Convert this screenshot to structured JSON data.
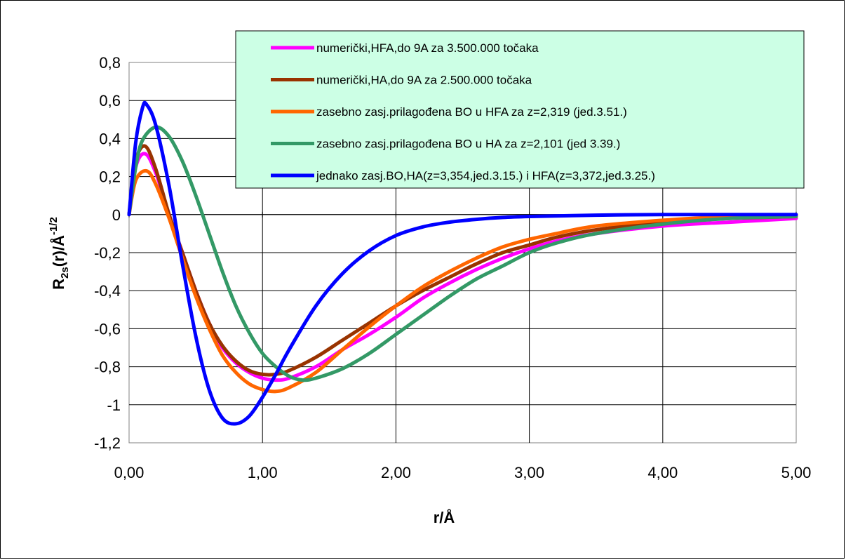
{
  "chart_data": {
    "type": "line",
    "xlabel": "r/Å",
    "ylabel": {
      "main": "R",
      "sub": "2s",
      "mid": "(r)/Å",
      "sup": "-1/2"
    },
    "xlim": [
      0,
      5
    ],
    "ylim": [
      -1.2,
      0.8
    ],
    "x_ticks": [
      {
        "value": 0,
        "label": "0,00"
      },
      {
        "value": 1,
        "label": "1,00"
      },
      {
        "value": 2,
        "label": "2,00"
      },
      {
        "value": 3,
        "label": "3,00"
      },
      {
        "value": 4,
        "label": "4,00"
      },
      {
        "value": 5,
        "label": "5,00"
      }
    ],
    "y_ticks": [
      {
        "value": 0.8,
        "label": "0,8"
      },
      {
        "value": 0.6,
        "label": "0,6"
      },
      {
        "value": 0.4,
        "label": "0,4"
      },
      {
        "value": 0.2,
        "label": "0,2"
      },
      {
        "value": 0,
        "label": "0"
      },
      {
        "value": -0.2,
        "label": "-0,2"
      },
      {
        "value": -0.4,
        "label": "-0,4"
      },
      {
        "value": -0.6,
        "label": "-0,6"
      },
      {
        "value": -0.8,
        "label": "-0,8"
      },
      {
        "value": -1,
        "label": "-1"
      },
      {
        "value": -1.2,
        "label": "-1,2"
      }
    ],
    "grid": true,
    "legend_position": "top-right",
    "legend_background": "#ccffe5",
    "series": [
      {
        "name": "numerički,HFA,do 9A za 3.500.000 točaka",
        "color": "#ff00ff",
        "points": [
          [
            0,
            0
          ],
          [
            0.05,
            0.25
          ],
          [
            0.12,
            0.32
          ],
          [
            0.2,
            0.22
          ],
          [
            0.3,
            0.0
          ],
          [
            0.4,
            -0.2
          ],
          [
            0.5,
            -0.4
          ],
          [
            0.6,
            -0.57
          ],
          [
            0.7,
            -0.7
          ],
          [
            0.8,
            -0.78
          ],
          [
            0.9,
            -0.83
          ],
          [
            1.0,
            -0.86
          ],
          [
            1.1,
            -0.87
          ],
          [
            1.2,
            -0.86
          ],
          [
            1.4,
            -0.8
          ],
          [
            1.6,
            -0.71
          ],
          [
            1.8,
            -0.63
          ],
          [
            2.0,
            -0.54
          ],
          [
            2.2,
            -0.44
          ],
          [
            2.4,
            -0.36
          ],
          [
            2.6,
            -0.29
          ],
          [
            2.8,
            -0.23
          ],
          [
            3.0,
            -0.18
          ],
          [
            3.2,
            -0.14
          ],
          [
            3.5,
            -0.1
          ],
          [
            4.0,
            -0.06
          ],
          [
            4.5,
            -0.04
          ],
          [
            5.0,
            -0.02
          ]
        ]
      },
      {
        "name": "numerički,HA,do 9A za 2.500.000 točaka",
        "color": "#993300",
        "points": [
          [
            0,
            0
          ],
          [
            0.05,
            0.28
          ],
          [
            0.12,
            0.36
          ],
          [
            0.2,
            0.24
          ],
          [
            0.3,
            0.0
          ],
          [
            0.4,
            -0.2
          ],
          [
            0.5,
            -0.4
          ],
          [
            0.6,
            -0.57
          ],
          [
            0.7,
            -0.69
          ],
          [
            0.8,
            -0.77
          ],
          [
            0.9,
            -0.82
          ],
          [
            1.0,
            -0.84
          ],
          [
            1.1,
            -0.84
          ],
          [
            1.2,
            -0.82
          ],
          [
            1.4,
            -0.75
          ],
          [
            1.6,
            -0.66
          ],
          [
            1.8,
            -0.57
          ],
          [
            2.0,
            -0.48
          ],
          [
            2.2,
            -0.4
          ],
          [
            2.4,
            -0.33
          ],
          [
            2.6,
            -0.26
          ],
          [
            2.8,
            -0.2
          ],
          [
            3.0,
            -0.16
          ],
          [
            3.2,
            -0.12
          ],
          [
            3.5,
            -0.08
          ],
          [
            4.0,
            -0.04
          ],
          [
            4.5,
            -0.02
          ],
          [
            5.0,
            -0.01
          ]
        ]
      },
      {
        "name": "zasebno zasj.prilagođena BO u HFA za z=2,319 (jed.3.51.)",
        "color": "#ff6600",
        "points": [
          [
            0,
            0
          ],
          [
            0.05,
            0.18
          ],
          [
            0.13,
            0.23
          ],
          [
            0.2,
            0.16
          ],
          [
            0.3,
            -0.02
          ],
          [
            0.4,
            -0.23
          ],
          [
            0.5,
            -0.43
          ],
          [
            0.6,
            -0.6
          ],
          [
            0.7,
            -0.74
          ],
          [
            0.8,
            -0.83
          ],
          [
            0.9,
            -0.89
          ],
          [
            1.0,
            -0.92
          ],
          [
            1.1,
            -0.93
          ],
          [
            1.2,
            -0.91
          ],
          [
            1.4,
            -0.83
          ],
          [
            1.6,
            -0.71
          ],
          [
            1.8,
            -0.59
          ],
          [
            2.0,
            -0.48
          ],
          [
            2.2,
            -0.38
          ],
          [
            2.4,
            -0.3
          ],
          [
            2.6,
            -0.23
          ],
          [
            2.8,
            -0.17
          ],
          [
            3.0,
            -0.13
          ],
          [
            3.2,
            -0.1
          ],
          [
            3.5,
            -0.06
          ],
          [
            4.0,
            -0.03
          ],
          [
            4.5,
            -0.01
          ],
          [
            5.0,
            -0.005
          ]
        ]
      },
      {
        "name": "zasebno zasj.prilagođena BO u HA za z=2,101 (jed 3.39.)",
        "color": "#339966",
        "points": [
          [
            0,
            0
          ],
          [
            0.05,
            0.25
          ],
          [
            0.1,
            0.39
          ],
          [
            0.2,
            0.46
          ],
          [
            0.3,
            0.41
          ],
          [
            0.4,
            0.28
          ],
          [
            0.5,
            0.1
          ],
          [
            0.6,
            -0.1
          ],
          [
            0.7,
            -0.3
          ],
          [
            0.8,
            -0.48
          ],
          [
            0.9,
            -0.62
          ],
          [
            1.0,
            -0.73
          ],
          [
            1.1,
            -0.8
          ],
          [
            1.2,
            -0.85
          ],
          [
            1.3,
            -0.87
          ],
          [
            1.4,
            -0.86
          ],
          [
            1.6,
            -0.81
          ],
          [
            1.8,
            -0.73
          ],
          [
            2.0,
            -0.63
          ],
          [
            2.2,
            -0.53
          ],
          [
            2.4,
            -0.43
          ],
          [
            2.6,
            -0.34
          ],
          [
            2.8,
            -0.27
          ],
          [
            3.0,
            -0.2
          ],
          [
            3.2,
            -0.15
          ],
          [
            3.5,
            -0.1
          ],
          [
            4.0,
            -0.05
          ],
          [
            4.5,
            -0.02
          ],
          [
            5.0,
            -0.01
          ]
        ]
      },
      {
        "name": "jednako zasj.BO,HA(z=3,354,jed.3.15.) i HFA(z=3,372,jed.3.25.)",
        "color": "#0000ff",
        "points": [
          [
            0,
            0
          ],
          [
            0.05,
            0.38
          ],
          [
            0.1,
            0.56
          ],
          [
            0.13,
            0.58
          ],
          [
            0.2,
            0.47
          ],
          [
            0.3,
            0.15
          ],
          [
            0.4,
            -0.26
          ],
          [
            0.5,
            -0.64
          ],
          [
            0.6,
            -0.92
          ],
          [
            0.7,
            -1.07
          ],
          [
            0.8,
            -1.1
          ],
          [
            0.9,
            -1.06
          ],
          [
            1.0,
            -0.96
          ],
          [
            1.1,
            -0.84
          ],
          [
            1.2,
            -0.71
          ],
          [
            1.4,
            -0.48
          ],
          [
            1.6,
            -0.31
          ],
          [
            1.8,
            -0.19
          ],
          [
            2.0,
            -0.11
          ],
          [
            2.2,
            -0.065
          ],
          [
            2.4,
            -0.04
          ],
          [
            2.6,
            -0.025
          ],
          [
            2.8,
            -0.015
          ],
          [
            3.0,
            -0.01
          ],
          [
            3.5,
            -0.003
          ],
          [
            4.0,
            0.0
          ],
          [
            5.0,
            0.0
          ]
        ]
      }
    ]
  }
}
